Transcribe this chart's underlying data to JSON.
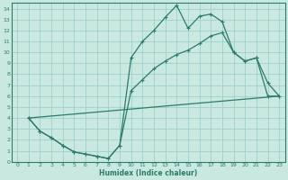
{
  "bg_color": "#c8e8e0",
  "grid_color": "#9ecfcf",
  "line_color": "#2d7b6b",
  "xlabel": "Humidex (Indice chaleur)",
  "xlim": [
    -0.5,
    23.5
  ],
  "ylim": [
    0,
    14.5
  ],
  "xticks": [
    0,
    1,
    2,
    3,
    4,
    5,
    6,
    7,
    8,
    9,
    10,
    11,
    12,
    13,
    14,
    15,
    16,
    17,
    18,
    19,
    20,
    21,
    22,
    23
  ],
  "yticks": [
    0,
    1,
    2,
    3,
    4,
    5,
    6,
    7,
    8,
    9,
    10,
    11,
    12,
    13,
    14
  ],
  "curve1_x": [
    1,
    2,
    3,
    4,
    5,
    6,
    7,
    8,
    9,
    10,
    11,
    12,
    13,
    14,
    15,
    16,
    17,
    18,
    19,
    20,
    21,
    22,
    23
  ],
  "curve1_y": [
    4.0,
    2.8,
    2.2,
    1.5,
    0.9,
    0.7,
    0.5,
    0.3,
    1.5,
    9.5,
    11.0,
    12.0,
    13.2,
    14.3,
    12.2,
    13.3,
    13.5,
    12.8,
    10.0,
    9.2,
    9.5,
    7.2,
    6.0
  ],
  "curve2_x": [
    1,
    2,
    3,
    4,
    5,
    6,
    7,
    8,
    9,
    10,
    11,
    12,
    13,
    14,
    15,
    16,
    17,
    18,
    19,
    20,
    21,
    22,
    23
  ],
  "curve2_y": [
    4.0,
    2.8,
    2.2,
    1.5,
    0.9,
    0.7,
    0.5,
    0.3,
    1.5,
    6.5,
    7.5,
    8.5,
    9.2,
    9.8,
    10.2,
    10.8,
    11.5,
    11.8,
    10.0,
    9.2,
    9.5,
    6.0,
    6.0
  ],
  "curve3_x": [
    1,
    23
  ],
  "curve3_y": [
    4.0,
    6.0
  ]
}
